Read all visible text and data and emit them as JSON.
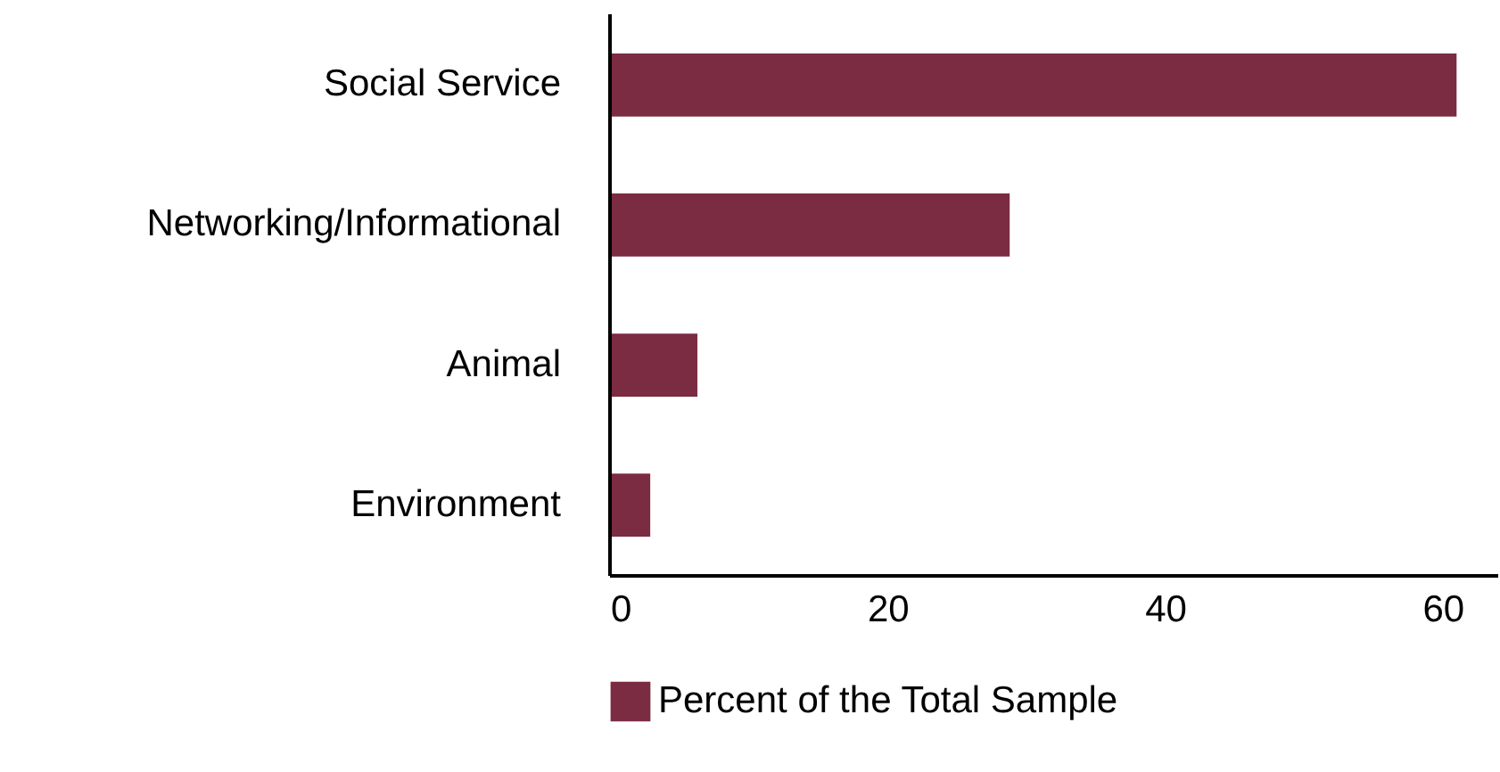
{
  "chart_data": {
    "type": "bar",
    "orientation": "horizontal",
    "categories": [
      "Social Service",
      "Networking/Informational",
      "Animal",
      "Environment"
    ],
    "series": [
      {
        "name": "Percent of the Total Sample",
        "color": "#7b2c42",
        "values": [
          61.0,
          28.8,
          6.3,
          2.9
        ]
      }
    ],
    "xlim": [
      0,
      64
    ],
    "xticks": [
      0,
      20,
      40,
      60
    ],
    "grid": false,
    "legend": "bottom"
  }
}
